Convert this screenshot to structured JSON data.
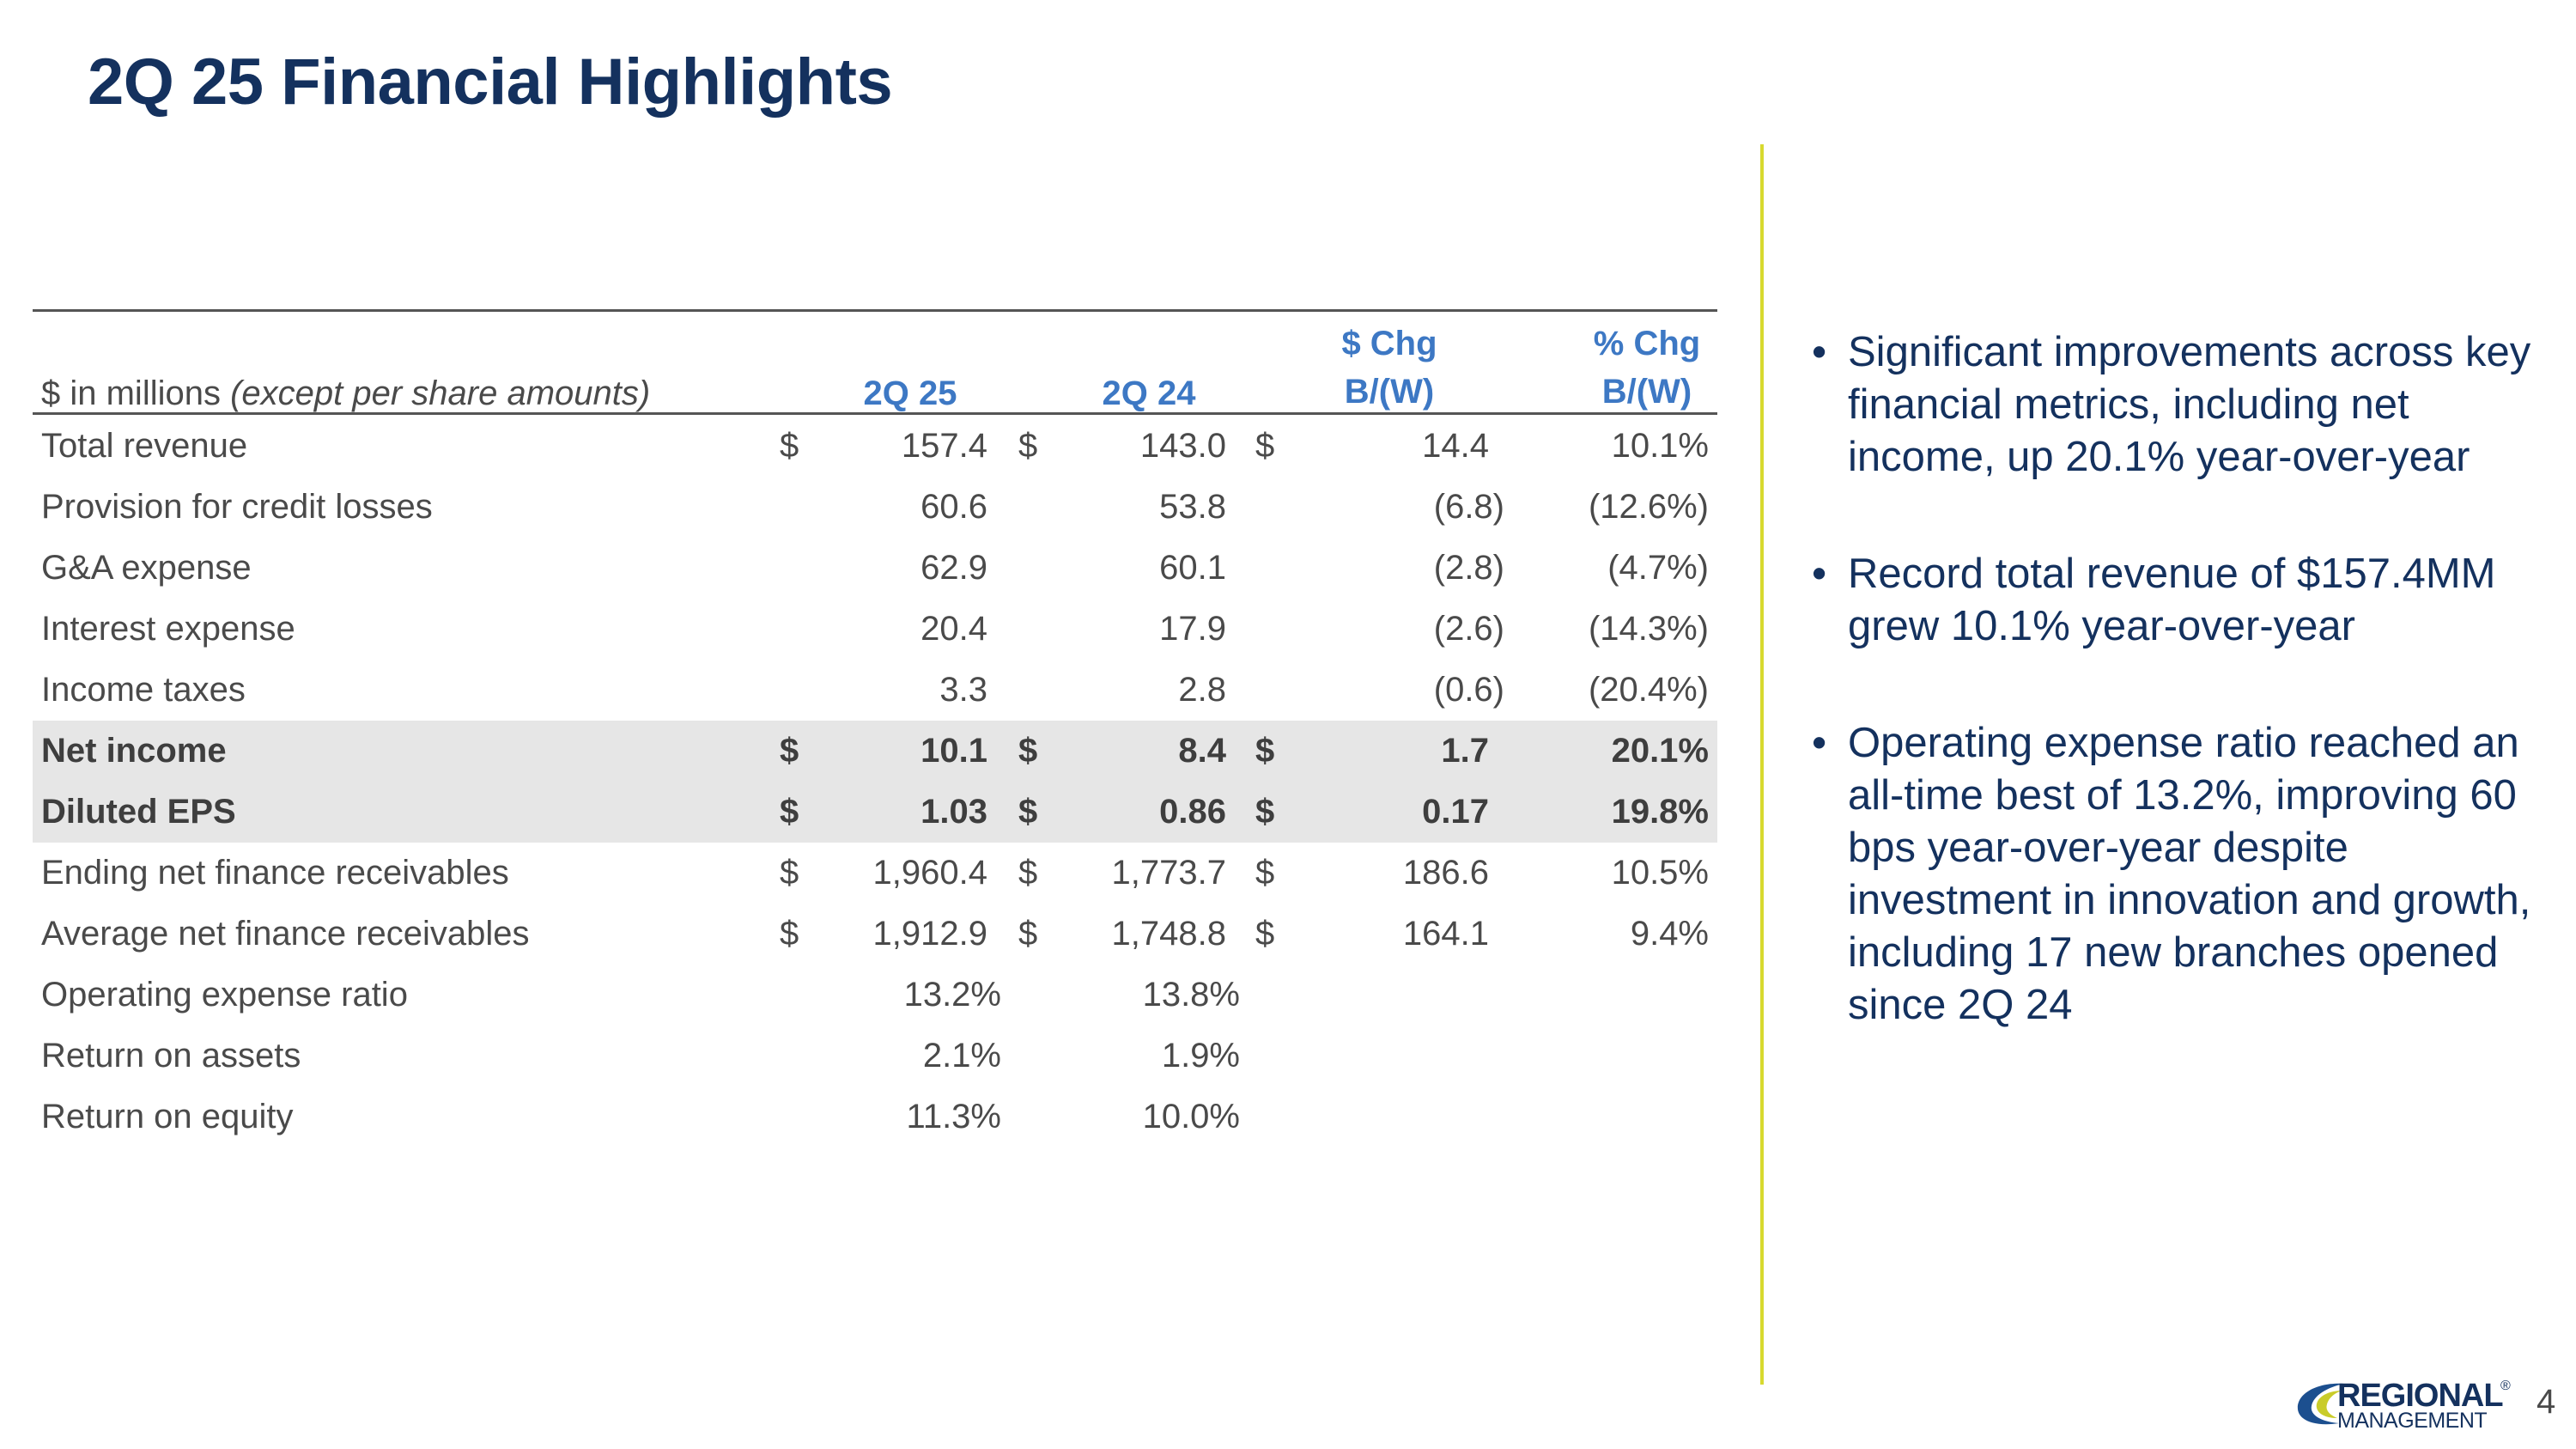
{
  "slide": {
    "title": "2Q 25 Financial Highlights",
    "page_number": "4"
  },
  "table": {
    "header_label": "$ in millions",
    "header_label_italic": "(except per share amounts)",
    "col1": "2Q 25",
    "col2": "2Q 24",
    "col3_line1": "$ Chg",
    "col3_line2": "B/(W)",
    "col4_line1": "% Chg",
    "col4_line2": "B/(W)",
    "rows": [
      {
        "label": "Total revenue",
        "d1": "$",
        "v1": "157.4",
        "d2": "$",
        "v2": "143.0",
        "d3": "$",
        "v3": "14.4",
        "v4": "10.1%"
      },
      {
        "label": "Provision for credit losses",
        "d1": "",
        "v1": "60.6",
        "d2": "",
        "v2": "53.8",
        "d3": "",
        "v3": "(6.8)",
        "v4": "(12.6%)"
      },
      {
        "label": "G&A expense",
        "d1": "",
        "v1": "62.9",
        "d2": "",
        "v2": "60.1",
        "d3": "",
        "v3": "(2.8)",
        "v4": "(4.7%)"
      },
      {
        "label": "Interest expense",
        "d1": "",
        "v1": "20.4",
        "d2": "",
        "v2": "17.9",
        "d3": "",
        "v3": "(2.6)",
        "v4": "(14.3%)"
      },
      {
        "label": "Income taxes",
        "d1": "",
        "v1": "3.3",
        "d2": "",
        "v2": "2.8",
        "d3": "",
        "v3": "(0.6)",
        "v4": "(20.4%)"
      },
      {
        "label": "Net income",
        "d1": "$",
        "v1": "10.1",
        "d2": "$",
        "v2": "8.4",
        "d3": "$",
        "v3": "1.7",
        "v4": "20.1%"
      },
      {
        "label": "Diluted EPS",
        "d1": "$",
        "v1": "1.03",
        "d2": "$",
        "v2": "0.86",
        "d3": "$",
        "v3": "0.17",
        "v4": "19.8%"
      },
      {
        "label": "Ending net finance receivables",
        "d1": "$",
        "v1": "1,960.4",
        "d2": "$",
        "v2": "1,773.7",
        "d3": "$",
        "v3": "186.6",
        "v4": "10.5%"
      },
      {
        "label": "Average net finance receivables",
        "d1": "$",
        "v1": "1,912.9",
        "d2": "$",
        "v2": "1,748.8",
        "d3": "$",
        "v3": "164.1",
        "v4": "9.4%"
      },
      {
        "label": "Operating expense ratio",
        "v1": "13.2%",
        "v2": "13.8%"
      },
      {
        "label": "Return on assets",
        "v1": "2.1%",
        "v2": "1.9%"
      },
      {
        "label": "Return on equity",
        "v1": "11.3%",
        "v2": "10.0%"
      }
    ]
  },
  "bullets": [
    "Significant improvements across key financial metrics, including net income, up 20.1% year-over-year",
    "Record total revenue of $157.4MM grew 10.1% year-over-year",
    "Operating expense ratio reached an all-time best of 13.2%, improving 60 bps year-over-year despite investment in innovation and growth, including 17 new branches opened since 2Q 24"
  ],
  "bullet_glyph": "•",
  "logo": {
    "line1": "REGIONAL",
    "line2": "MANAGEMENT",
    "mark": "®"
  },
  "colors": {
    "title": "#14315e",
    "header_accent": "#3d78c4",
    "divider": "#d7d92f",
    "highlight_row": "#e6e6e6"
  }
}
